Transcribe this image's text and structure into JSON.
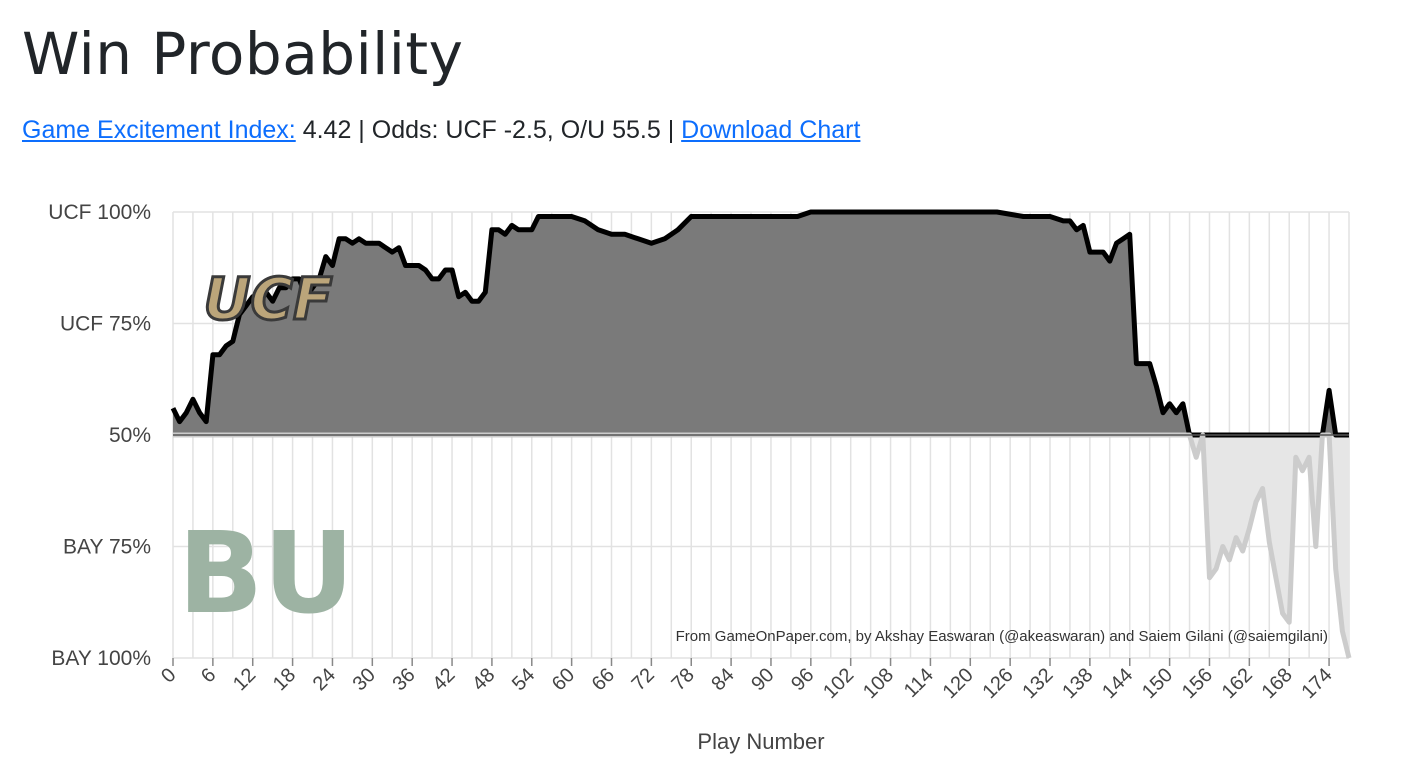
{
  "page": {
    "title": "Win Probability",
    "excitement_link": "Game Excitement Index:",
    "excitement_value": "4.42",
    "separator": " | ",
    "odds_text": "Odds: UCF -2.5, O/U 55.5",
    "download_link": "Download Chart"
  },
  "colors": {
    "home_fill": "#7a7a7a",
    "home_line": "#000000",
    "away_fill": "#e6e6e6",
    "away_line": "#cccccc",
    "grid": "#e2e2e2",
    "link": "#0d6efd"
  },
  "logos": {
    "top": "ucf-logo",
    "top_text": "UCF",
    "bottom": "baylor-logo",
    "bottom_text": "BU"
  },
  "chart_data": {
    "type": "area",
    "xlabel": "Play Number",
    "ylabel": "",
    "xlim": [
      0,
      177
    ],
    "ylim": [
      0,
      100
    ],
    "baseline": 50,
    "grid": true,
    "y_ticks": [
      {
        "value": 100,
        "label": "UCF 100%"
      },
      {
        "value": 75,
        "label": "UCF 75%"
      },
      {
        "value": 50,
        "label": "50%"
      },
      {
        "value": 25,
        "label": "BAY 75%"
      },
      {
        "value": 0,
        "label": "BAY 100%"
      }
    ],
    "x_ticks": [
      0,
      6,
      12,
      18,
      24,
      30,
      36,
      42,
      48,
      54,
      60,
      66,
      72,
      78,
      84,
      90,
      96,
      102,
      108,
      114,
      120,
      126,
      132,
      138,
      144,
      150,
      156,
      162,
      168,
      174
    ],
    "annotation": "From GameOnPaper.com, by Akshay Easwaran (@akeaswaran) and Saiem Gilani (@saiemgilani)",
    "series": [
      {
        "x": [
          0,
          1,
          2,
          3,
          4,
          5,
          6,
          7,
          8,
          9,
          10,
          11,
          12,
          13,
          14,
          15,
          16,
          17,
          18,
          19,
          20,
          21,
          22,
          23,
          24,
          25,
          26,
          27,
          28,
          29,
          30,
          31,
          32,
          33,
          34,
          35,
          36,
          37,
          38,
          39,
          40,
          41,
          42,
          43,
          44,
          45,
          46,
          47,
          48,
          49,
          50,
          51,
          52,
          53,
          54,
          55,
          56,
          57,
          58,
          59,
          60,
          62,
          64,
          66,
          68,
          70,
          72,
          74,
          76,
          78,
          80,
          82,
          84,
          86,
          88,
          90,
          92,
          94,
          96,
          100,
          104,
          108,
          112,
          116,
          120,
          124,
          128,
          132,
          134,
          135,
          136,
          137,
          138,
          140,
          141,
          142,
          143,
          144,
          145,
          146,
          147,
          148,
          149,
          150,
          151,
          152,
          153,
          154,
          155,
          156,
          157,
          158,
          159,
          160,
          161,
          162,
          163,
          164,
          165,
          166,
          167,
          168,
          169,
          170,
          171,
          172,
          173,
          174,
          175,
          176,
          177
        ],
        "y": [
          56,
          53,
          55,
          58,
          55,
          53,
          68,
          68,
          70,
          71,
          77,
          79,
          81,
          80,
          82,
          80,
          83,
          83,
          85,
          85,
          81,
          83,
          85,
          90,
          88,
          94,
          94,
          93,
          94,
          93,
          93,
          93,
          92,
          91,
          92,
          88,
          88,
          88,
          87,
          85,
          85,
          87,
          87,
          81,
          82,
          80,
          80,
          82,
          96,
          96,
          95,
          97,
          96,
          96,
          96,
          99,
          99,
          99,
          99,
          99,
          99,
          98,
          96,
          95,
          95,
          94,
          93,
          94,
          96,
          99,
          99,
          99,
          99,
          99,
          99,
          99,
          99,
          99,
          100,
          100,
          100,
          100,
          100,
          100,
          100,
          100,
          99,
          99,
          98,
          98,
          96,
          97,
          91,
          91,
          89,
          93,
          94,
          95,
          66,
          66,
          66,
          61,
          55,
          57,
          55,
          57,
          50,
          45,
          50,
          18,
          20,
          25,
          22,
          27,
          24,
          29,
          35,
          38,
          26,
          18,
          10,
          8,
          45,
          42,
          45,
          25,
          50,
          60,
          20,
          6,
          0
        ]
      }
    ]
  }
}
